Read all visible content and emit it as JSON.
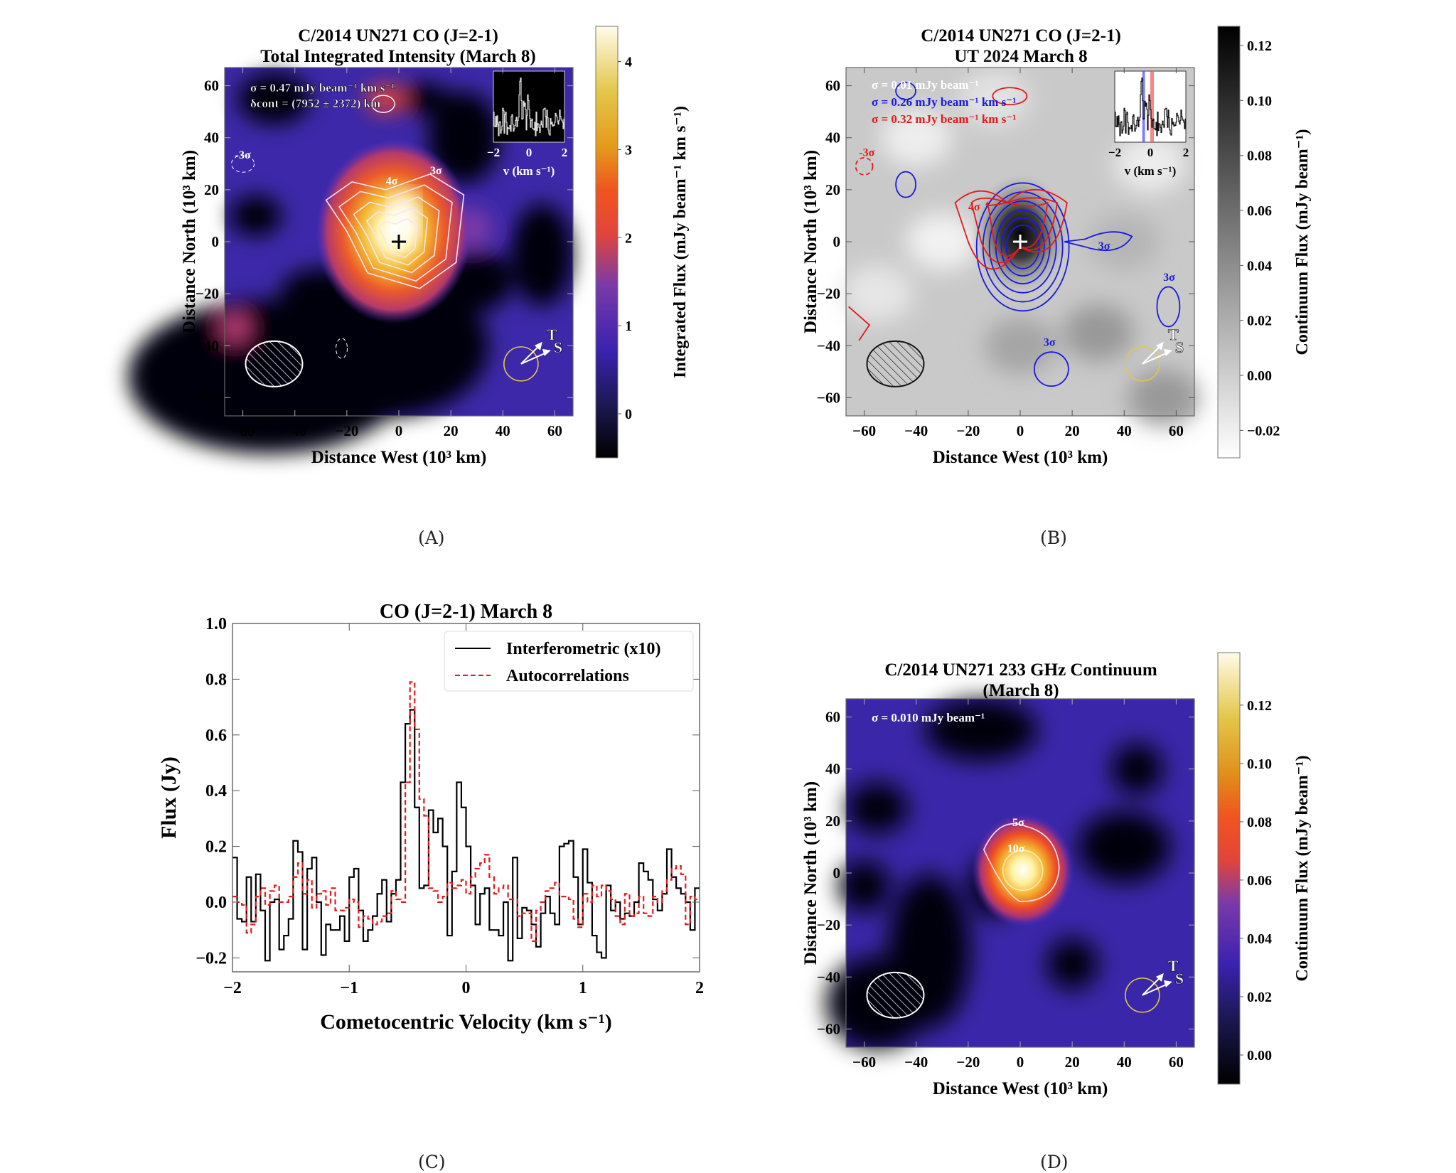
{
  "figure": {
    "panel_labels": [
      "(A)",
      "(B)",
      "(C)",
      "(D)"
    ]
  },
  "chart_data": [
    {
      "id": "A",
      "type": "heatmap",
      "title": [
        "C/2014 UN271 CO (J=2-1)",
        "Total Integrated Intensity (March 8)"
      ],
      "xlabel": "Distance West (10³ km)",
      "ylabel": "Distance North (10³ km)",
      "xlim": [
        -67,
        67
      ],
      "ylim": [
        -67,
        67
      ],
      "xticks": [
        -60,
        -40,
        -20,
        0,
        20,
        40,
        60
      ],
      "yticks": [
        -60,
        -40,
        -20,
        0,
        20,
        40,
        60
      ],
      "colormap": "CMRmap-like (black-purple-red-orange-yellow-white)",
      "colorbar": {
        "label": "Integrated Flux (mJy beam⁻¹ km s⁻¹)",
        "range": [
          -0.5,
          4.4
        ],
        "ticks": [
          0,
          1,
          2,
          3,
          4
        ]
      },
      "annotations": [
        "σ = 0.47 mJy beam⁻¹ km s⁻¹",
        "δcont = (7952 ± 2372) km"
      ],
      "contour_levels": [
        "3σ",
        "4σ",
        "5σ",
        "6σ",
        "8σ",
        "-3σ"
      ],
      "peak": {
        "x": 2,
        "y": 10
      },
      "nucleus_marker": {
        "x": 0,
        "y": 0,
        "color": "#000000"
      },
      "beam": {
        "x": -48,
        "y": -47,
        "width": 22,
        "height": 17
      },
      "direction_labels": [
        "T",
        "S"
      ],
      "inset": {
        "xlabel": "v (km s⁻¹)",
        "xticks": [
          -2,
          0,
          2
        ]
      }
    },
    {
      "id": "B",
      "type": "heatmap",
      "title": [
        "C/2014 UN271 CO (J=2-1)",
        "UT 2024 March 8"
      ],
      "xlabel": "Distance West (10³ km)",
      "ylabel": "Distance North (10³ km)",
      "xlim": [
        -67,
        67
      ],
      "ylim": [
        -67,
        67
      ],
      "xticks": [
        -60,
        -40,
        -20,
        0,
        20,
        40,
        60
      ],
      "yticks": [
        -60,
        -40,
        -20,
        0,
        20,
        40,
        60
      ],
      "colormap": "gray_r",
      "colorbar": {
        "label": "Continuum Flux (mJy beam⁻¹)",
        "range": [
          -0.03,
          0.127
        ],
        "ticks": [
          -0.02,
          0.0,
          0.02,
          0.04,
          0.06,
          0.08,
          0.1,
          0.12
        ]
      },
      "annotations": [
        {
          "text": "σ = 0.01 mJy beam⁻¹",
          "color": "#ffffff"
        },
        {
          "text": "σ = 0.26 mJy beam⁻¹ km s⁻¹",
          "color": "#1a1adf"
        },
        {
          "text": "σ = 0.32 mJy beam⁻¹ km s⁻¹",
          "color": "#e41a1a"
        }
      ],
      "contours": {
        "blue": {
          "color": "#1a1adf",
          "levels": [
            "3σ",
            "4σ",
            "5σ",
            "6σ",
            "8σ",
            "10σ"
          ]
        },
        "red": {
          "color": "#e41a1a",
          "levels": [
            "3σ",
            "4σ",
            "5σ",
            "-3σ"
          ]
        }
      },
      "nucleus_marker": {
        "x": 0,
        "y": 0,
        "color": "#ffffff"
      },
      "inset": {
        "xlabel": "v (km s⁻¹)",
        "xticks": [
          -2,
          0,
          2
        ],
        "blue_band": [
          -0.45,
          -0.3
        ],
        "red_band": [
          0,
          0.2
        ]
      },
      "direction_labels": [
        "T",
        "S"
      ]
    },
    {
      "id": "C",
      "type": "line",
      "title": "CO (J=2-1) March 8",
      "xlabel": "Cometocentric Velocity (km s⁻¹)",
      "ylabel": "Flux (Jy)",
      "xlim": [
        -2,
        2
      ],
      "ylim": [
        -0.25,
        1.0
      ],
      "xticks": [
        -2,
        -1,
        0,
        1,
        2
      ],
      "yticks": [
        -0.2,
        0.0,
        0.2,
        0.4,
        0.6,
        0.8,
        1.0
      ],
      "ytick_labels": [
        "−0.2",
        "0.0",
        "0.2",
        "0.4",
        "0.6",
        "0.8",
        "1.0"
      ],
      "xtick_labels": [
        "−2",
        "−1",
        "0",
        "1",
        "2"
      ],
      "legend": {
        "position": "top-right",
        "entries": [
          "Interferometric (x10)",
          "Autocorrelations"
        ]
      },
      "step": true,
      "x": [
        -2.0,
        -1.96,
        -1.92,
        -1.88,
        -1.84,
        -1.8,
        -1.76,
        -1.72,
        -1.68,
        -1.64,
        -1.6,
        -1.56,
        -1.52,
        -1.48,
        -1.44,
        -1.4,
        -1.36,
        -1.32,
        -1.28,
        -1.24,
        -1.2,
        -1.16,
        -1.12,
        -1.08,
        -1.04,
        -1.0,
        -0.96,
        -0.92,
        -0.88,
        -0.84,
        -0.8,
        -0.76,
        -0.72,
        -0.68,
        -0.64,
        -0.6,
        -0.56,
        -0.52,
        -0.48,
        -0.44,
        -0.4,
        -0.36,
        -0.32,
        -0.28,
        -0.24,
        -0.2,
        -0.16,
        -0.12,
        -0.08,
        -0.04,
        0.0,
        0.04,
        0.08,
        0.12,
        0.16,
        0.2,
        0.24,
        0.28,
        0.32,
        0.36,
        0.4,
        0.44,
        0.48,
        0.52,
        0.56,
        0.6,
        0.64,
        0.68,
        0.72,
        0.76,
        0.8,
        0.84,
        0.88,
        0.92,
        0.96,
        1.0,
        1.04,
        1.08,
        1.12,
        1.16,
        1.2,
        1.24,
        1.28,
        1.32,
        1.36,
        1.4,
        1.44,
        1.48,
        1.52,
        1.56,
        1.6,
        1.64,
        1.68,
        1.72,
        1.76,
        1.8,
        1.84,
        1.88,
        1.92,
        1.96
      ],
      "series": [
        {
          "name": "Interferometric (x10)",
          "color": "#000000",
          "dash": "solid",
          "values": [
            0.16,
            -0.06,
            -0.07,
            0.09,
            -0.07,
            0.1,
            -0.03,
            -0.21,
            0.0,
            0.01,
            -0.17,
            -0.12,
            -0.06,
            0.22,
            0.18,
            -0.17,
            0.12,
            0.16,
            0.0,
            -0.19,
            -0.08,
            -0.1,
            -0.1,
            -0.05,
            -0.14,
            0.09,
            0.12,
            -0.03,
            -0.14,
            -0.1,
            -0.05,
            0.03,
            0.08,
            -0.07,
            0.03,
            0.08,
            0.43,
            0.64,
            0.69,
            0.34,
            0.05,
            0.06,
            0.33,
            0.25,
            0.3,
            0.2,
            -0.12,
            0.11,
            0.43,
            0.34,
            0.2,
            0.06,
            -0.08,
            0.03,
            0.05,
            -0.1,
            -0.1,
            -0.12,
            0.0,
            -0.21,
            0.16,
            -0.13,
            -0.02,
            -0.03,
            -0.08,
            -0.16,
            -0.04,
            0.02,
            -0.04,
            -0.08,
            0.2,
            0.21,
            0.22,
            0.09,
            -0.08,
            0.19,
            0.07,
            -0.12,
            -0.18,
            -0.2,
            0.06,
            -0.03,
            0.0,
            -0.06,
            -0.04,
            -0.05,
            0.0,
            0.14,
            0.11,
            0.08,
            0.01,
            -0.03,
            0.03,
            0.19,
            0.09,
            0.05,
            0.03,
            0.0,
            -0.1,
            0.05
          ]
        },
        {
          "name": "Autocorrelations",
          "color": "#e41a1a",
          "dash": "dashed",
          "values": [
            0.02,
            0.0,
            -0.01,
            -0.11,
            -0.08,
            0.02,
            0.05,
            -0.01,
            0.04,
            0.06,
            0.0,
            0.0,
            0.02,
            0.09,
            0.14,
            0.03,
            0.08,
            -0.02,
            0.03,
            0.04,
            -0.01,
            0.05,
            -0.03,
            -0.03,
            -0.02,
            0.01,
            0.0,
            -0.09,
            -0.05,
            -0.06,
            -0.08,
            -0.07,
            -0.05,
            -0.04,
            0.04,
            0.01,
            0.0,
            0.43,
            0.79,
            0.62,
            0.37,
            0.31,
            0.05,
            0.04,
            0.0,
            0.02,
            0.07,
            0.05,
            0.06,
            0.08,
            0.03,
            0.09,
            0.12,
            0.14,
            0.17,
            0.09,
            0.03,
            0.05,
            0.06,
            0.01,
            0.01,
            -0.05,
            -0.04,
            -0.04,
            -0.14,
            -0.03,
            0.0,
            0.04,
            0.05,
            0.07,
            0.02,
            0.02,
            0.01,
            -0.06,
            -0.09,
            0.03,
            0.0,
            0.06,
            0.02,
            0.06,
            0.04,
            0.01,
            -0.05,
            -0.08,
            0.03,
            -0.05,
            -0.04,
            0.02,
            -0.04,
            -0.05,
            0.02,
            0.0,
            0.04,
            0.08,
            0.12,
            0.13,
            0.1,
            -0.08,
            0.02,
            0.01
          ]
        }
      ]
    },
    {
      "id": "D",
      "type": "heatmap",
      "title": [
        "C/2014 UN271 233 GHz Continuum",
        "(March 8)"
      ],
      "xlabel": "Distance West (10³ km)",
      "ylabel": "Distance North (10³ km)",
      "xlim": [
        -67,
        67
      ],
      "ylim": [
        -67,
        67
      ],
      "xticks": [
        -60,
        -40,
        -20,
        0,
        20,
        40,
        60
      ],
      "yticks": [
        -60,
        -40,
        -20,
        0,
        20,
        40,
        60
      ],
      "colormap": "CMRmap-like (black-purple-red-orange-yellow-white)",
      "colorbar": {
        "label": "Continuum Flux (mJy beam⁻¹)",
        "range": [
          -0.01,
          0.138
        ],
        "ticks": [
          0.0,
          0.02,
          0.04,
          0.06,
          0.08,
          0.1,
          0.12
        ]
      },
      "annotations": [
        "σ = 0.010 mJy beam⁻¹"
      ],
      "contour_levels": [
        "5σ",
        "10σ"
      ],
      "peak": {
        "x": 1,
        "y": 1
      },
      "direction_labels": [
        "T",
        "S"
      ]
    }
  ]
}
